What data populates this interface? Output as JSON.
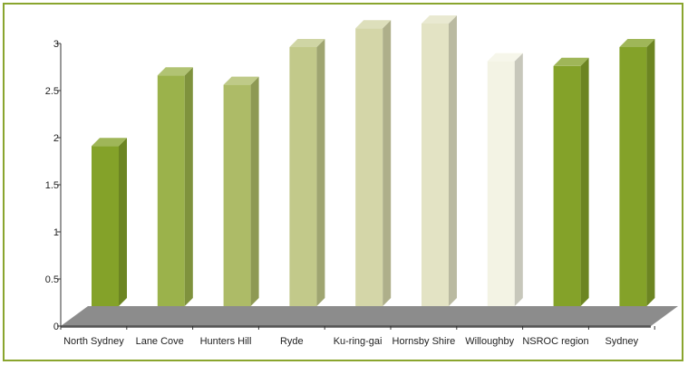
{
  "chart_data": {
    "type": "bar",
    "title": "",
    "xlabel": "",
    "ylabel": "",
    "ylim": [
      0,
      3
    ],
    "yticks": [
      "0",
      "0.5",
      "1",
      "1.5",
      "2",
      "2.5",
      "3"
    ],
    "grid": false,
    "legend": "none",
    "categories": [
      "North Sydney",
      "Lane Cove",
      "Hunters Hill",
      "Ryde",
      "Ku-ring-gai",
      "Hornsby Shire",
      "Willoughby",
      "NSROC region",
      "Sydney"
    ],
    "values": [
      1.7,
      2.45,
      2.35,
      2.75,
      2.95,
      3.0,
      2.6,
      2.55,
      2.75
    ],
    "bar_colors": [
      "#84a229",
      "#9bb24b",
      "#adbb67",
      "#c2c98a",
      "#d4d6a8",
      "#e3e3c4",
      "#f3f3e4",
      "#84a229",
      "#84a229"
    ]
  },
  "colors": {
    "frame_border": "#8aa52e",
    "floor": "#8c8c8c",
    "axis": "#333333"
  }
}
